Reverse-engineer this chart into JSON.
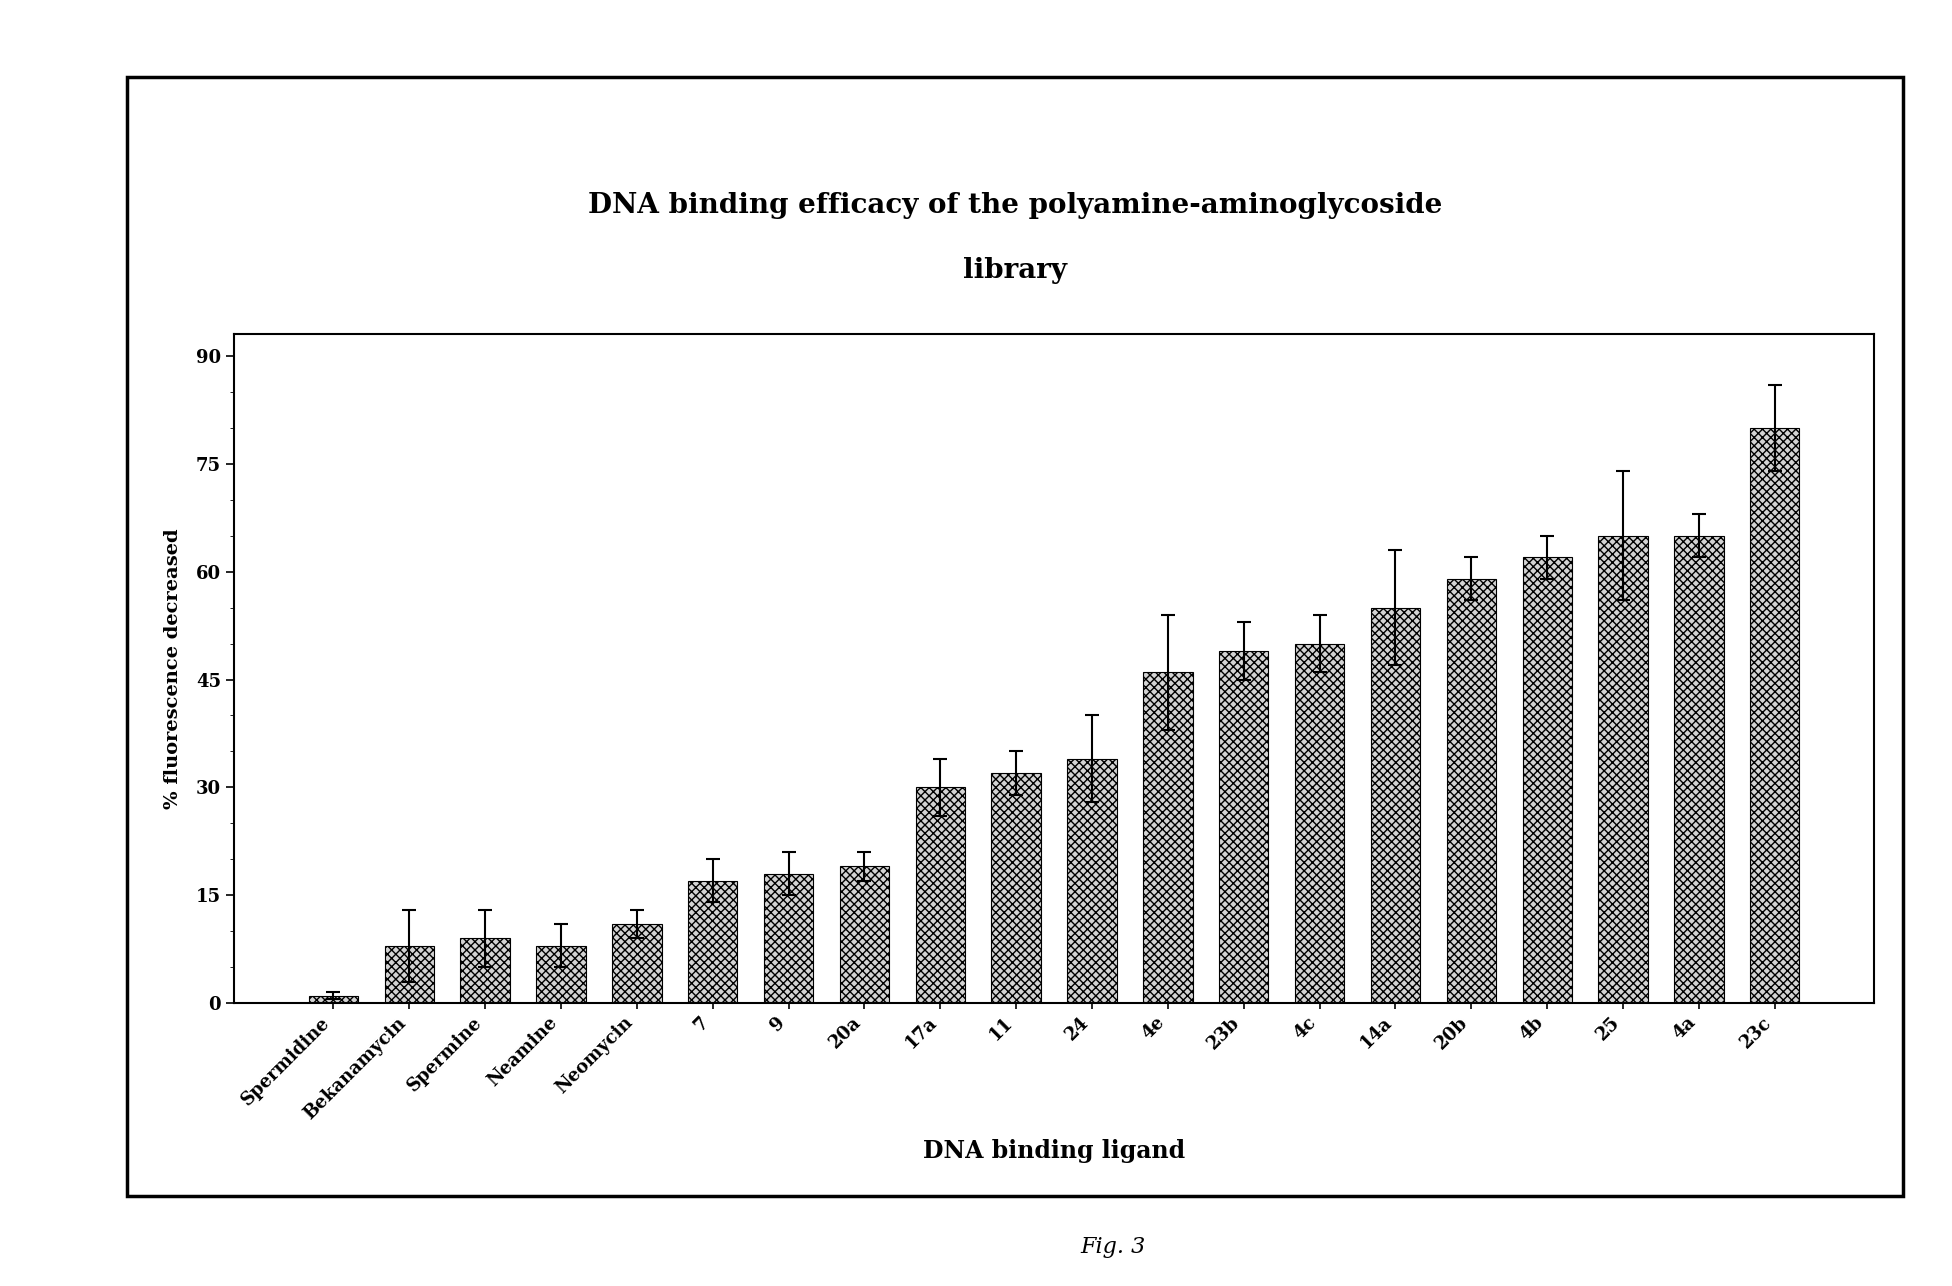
{
  "title_line1": "DNA binding efficacy of the polyamine-aminoglycoside",
  "title_line2": "library",
  "xlabel": "DNA binding ligand",
  "ylabel": "% fluorescence decreased",
  "categories": [
    "Spermidine",
    "Bekanamycin",
    "Spermine",
    "Neamine",
    "Neomycin",
    "7",
    "9",
    "20a",
    "17a",
    "11",
    "24",
    "4e",
    "23b",
    "4c",
    "14a",
    "20b",
    "4b",
    "25",
    "4a",
    "23c"
  ],
  "values": [
    1,
    8,
    9,
    8,
    11,
    17,
    18,
    19,
    30,
    32,
    34,
    46,
    49,
    50,
    55,
    59,
    62,
    65,
    65,
    80
  ],
  "errors": [
    0.5,
    5,
    4,
    3,
    2,
    3,
    3,
    2,
    4,
    3,
    6,
    8,
    4,
    4,
    8,
    3,
    3,
    9,
    3,
    6
  ],
  "ylim": [
    0,
    93
  ],
  "yticks": [
    0,
    15,
    30,
    45,
    60,
    75,
    90
  ],
  "background_color": "#ffffff",
  "fig_caption": "Fig. 3"
}
